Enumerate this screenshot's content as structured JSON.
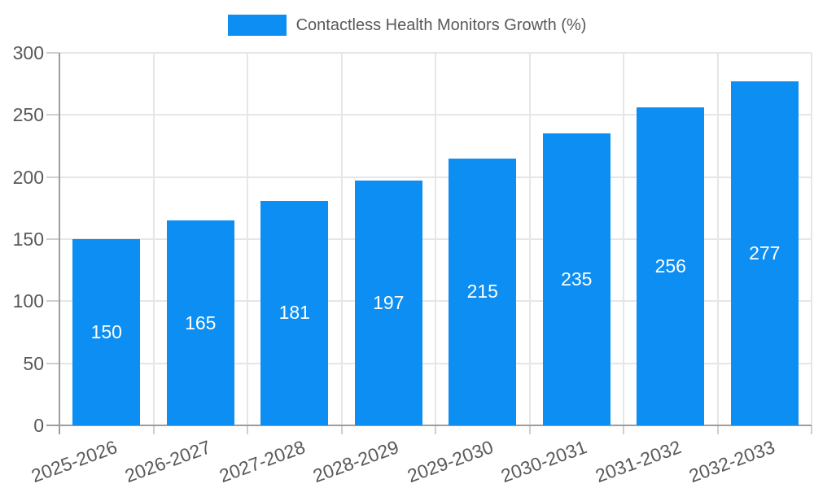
{
  "chart_data": {
    "type": "bar",
    "title": "Contactless Health Monitors Growth (%)",
    "categories": [
      "2025-2026",
      "2026-2027",
      "2027-2028",
      "2028-2029",
      "2029-2030",
      "2030-2031",
      "2031-2032",
      "2032-2033"
    ],
    "values": [
      150,
      165,
      181,
      197,
      215,
      235,
      256,
      277
    ],
    "xlabel": "",
    "ylabel": "",
    "ylim": [
      0,
      300
    ],
    "yticks": [
      0,
      50,
      100,
      150,
      200,
      250,
      300
    ],
    "grid": true,
    "legend_position": "top",
    "value_label_position": "inside-center"
  },
  "legend": {
    "label": "Contactless Health Monitors Growth (%)"
  },
  "colors": {
    "bar": "#0d8ef2",
    "grid": "#e6e6e6",
    "axis": "#9d9d9d",
    "tick": "#cfcfcf",
    "tick_label_text": "#58595c",
    "value_label_text": "#ffffff",
    "background": "#ffffff"
  }
}
